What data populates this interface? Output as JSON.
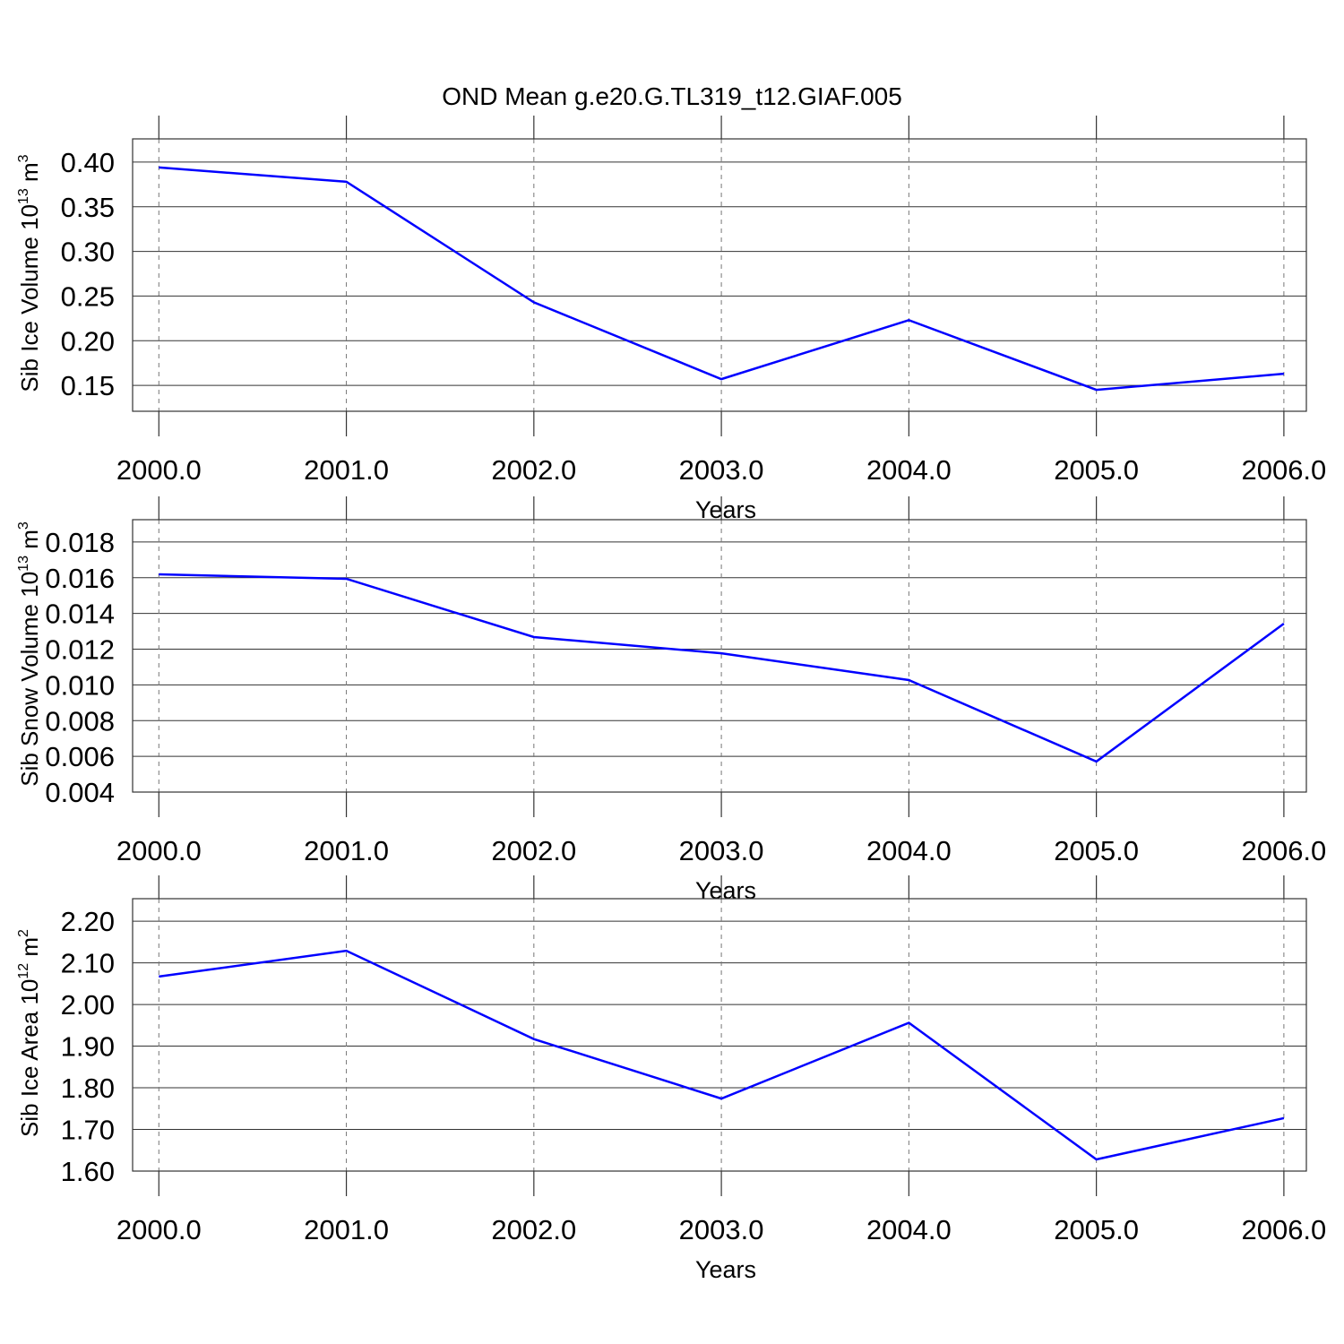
{
  "chart_data": [
    {
      "type": "line",
      "title": "OND Mean g.e20.G.TL319_t12.GIAF.005",
      "ylabel": [
        "Sib Ice Volume 10",
        "13",
        " m",
        "3"
      ],
      "xlabel": "Years",
      "x": [
        2000,
        2001,
        2002,
        2003,
        2004,
        2005,
        2006
      ],
      "series": [
        {
          "name": "Sib Ice Volume",
          "color": "#0000ff",
          "values": [
            0.394,
            0.378,
            0.243,
            0.157,
            0.223,
            0.145,
            0.163
          ]
        }
      ],
      "xlim": [
        1999.86,
        2006.12
      ],
      "xticks": [
        {
          "value": 2000,
          "label": "2000.0"
        },
        {
          "value": 2001,
          "label": "2001.0"
        },
        {
          "value": 2002,
          "label": "2002.0"
        },
        {
          "value": 2003,
          "label": "2003.0"
        },
        {
          "value": 2004,
          "label": "2004.0"
        },
        {
          "value": 2005,
          "label": "2005.0"
        },
        {
          "value": 2006,
          "label": "2006.0"
        }
      ],
      "ylim": [
        0.121,
        0.426
      ],
      "yticks": [
        0.15,
        {
          "value": 0.2,
          "label": "0.20"
        },
        0.25,
        {
          "value": 0.3,
          "label": "0.30"
        },
        0.35,
        {
          "value": 0.4,
          "label": "0.40"
        }
      ],
      "grid": true
    },
    {
      "type": "line",
      "ylabel": [
        "Sib Snow Volume 10",
        "13",
        " m",
        "3"
      ],
      "xlabel": "Years",
      "x": [
        2000,
        2001,
        2002,
        2003,
        2004,
        2005,
        2006
      ],
      "series": [
        {
          "name": "Sib Snow Volume",
          "color": "#0000ff",
          "values": [
            0.01619,
            0.01594,
            0.01268,
            0.01177,
            0.01027,
            0.00571,
            0.01343
          ]
        }
      ],
      "xlim": [
        1999.86,
        2006.12
      ],
      "xticks": [
        {
          "value": 2000,
          "label": "2000.0"
        },
        {
          "value": 2001,
          "label": "2001.0"
        },
        {
          "value": 2002,
          "label": "2002.0"
        },
        {
          "value": 2003,
          "label": "2003.0"
        },
        {
          "value": 2004,
          "label": "2004.0"
        },
        {
          "value": 2005,
          "label": "2005.0"
        },
        {
          "value": 2006,
          "label": "2006.0"
        }
      ],
      "ylim": [
        0.004,
        0.01925
      ],
      "yticks": [
        0.004,
        0.006,
        0.008,
        {
          "value": 0.01,
          "label": "0.010"
        },
        0.012,
        0.014,
        0.016,
        0.018
      ],
      "grid": true
    },
    {
      "type": "line",
      "ylabel": [
        "Sib Ice Area 10",
        "12",
        " m",
        "2"
      ],
      "xlabel": "Years",
      "x": [
        2000,
        2001,
        2002,
        2003,
        2004,
        2005,
        2006
      ],
      "series": [
        {
          "name": "Sib Ice Area",
          "color": "#0000ff",
          "values": [
            2.067,
            2.129,
            1.917,
            1.774,
            1.956,
            1.628,
            1.727
          ]
        }
      ],
      "xlim": [
        1999.86,
        2006.12
      ],
      "xticks": [
        {
          "value": 2000,
          "label": "2000.0"
        },
        {
          "value": 2001,
          "label": "2001.0"
        },
        {
          "value": 2002,
          "label": "2002.0"
        },
        {
          "value": 2003,
          "label": "2003.0"
        },
        {
          "value": 2004,
          "label": "2004.0"
        },
        {
          "value": 2005,
          "label": "2005.0"
        },
        {
          "value": 2006,
          "label": "2006.0"
        }
      ],
      "ylim": [
        1.6,
        2.254
      ],
      "yticks": [
        {
          "value": 1.6,
          "label": "1.60"
        },
        {
          "value": 1.7,
          "label": "1.70"
        },
        {
          "value": 1.8,
          "label": "1.80"
        },
        {
          "value": 1.9,
          "label": "1.90"
        },
        {
          "value": 2.0,
          "label": "2.00"
        },
        {
          "value": 2.1,
          "label": "2.10"
        },
        {
          "value": 2.2,
          "label": "2.20"
        }
      ],
      "grid": true
    }
  ]
}
